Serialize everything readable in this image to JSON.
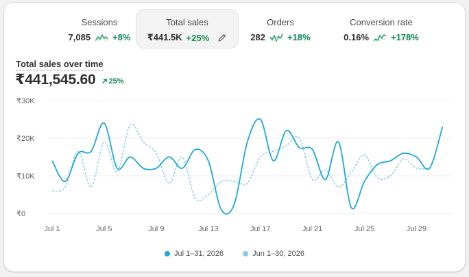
{
  "metrics": [
    {
      "label": "Sessions",
      "value": "7,085",
      "change": "+8%"
    },
    {
      "label": "Total sales",
      "value": "₹441.5K",
      "change": "+25%"
    },
    {
      "label": "Orders",
      "value": "282",
      "change": "+18%"
    },
    {
      "label": "Conversion rate",
      "value": "0.16%",
      "change": "+178%"
    }
  ],
  "chart_header": {
    "title": "Total sales over time",
    "value": "₹441,545.60",
    "change": "25%"
  },
  "colors": {
    "current": "#1ba8d8",
    "previous": "#84cbe6",
    "positive": "#0c8a4f"
  },
  "chart_data": {
    "type": "line",
    "title": "Total sales over time",
    "y_ticks": [
      "₹0",
      "₹10K",
      "₹20K",
      "₹30K"
    ],
    "ylim": [
      0,
      30000
    ],
    "x_tick_labels": [
      "Jul 1",
      "Jul 5",
      "Jul 9",
      "Jul 13",
      "Jul 17",
      "Jul 21",
      "Jul 25",
      "Jul 29"
    ],
    "x_tick_days": [
      1,
      5,
      9,
      13,
      17,
      21,
      25,
      29
    ],
    "grid": true,
    "legend_position": "bottom",
    "series": [
      {
        "name": "Jul 1–31, 2026",
        "style": "solid",
        "values": [
          14000,
          8500,
          16000,
          16500,
          24000,
          12000,
          15000,
          12000,
          12000,
          15000,
          12000,
          17000,
          14000,
          1000,
          2500,
          19000,
          25000,
          14000,
          22000,
          17500,
          17000,
          9000,
          19000,
          1500,
          8500,
          13000,
          14000,
          16000,
          15000,
          12000,
          23000
        ]
      },
      {
        "name": "Jun 1–30, 2026",
        "style": "dashed",
        "values": [
          6000,
          7000,
          16500,
          7000,
          19000,
          11000,
          23500,
          19000,
          16000,
          8000,
          15000,
          4000,
          5000,
          8500,
          8500,
          8000,
          15000,
          16500,
          18000,
          20000,
          9000,
          11500,
          7000,
          11000,
          15500,
          9500,
          10000,
          14500,
          12000,
          12000
        ]
      }
    ]
  }
}
